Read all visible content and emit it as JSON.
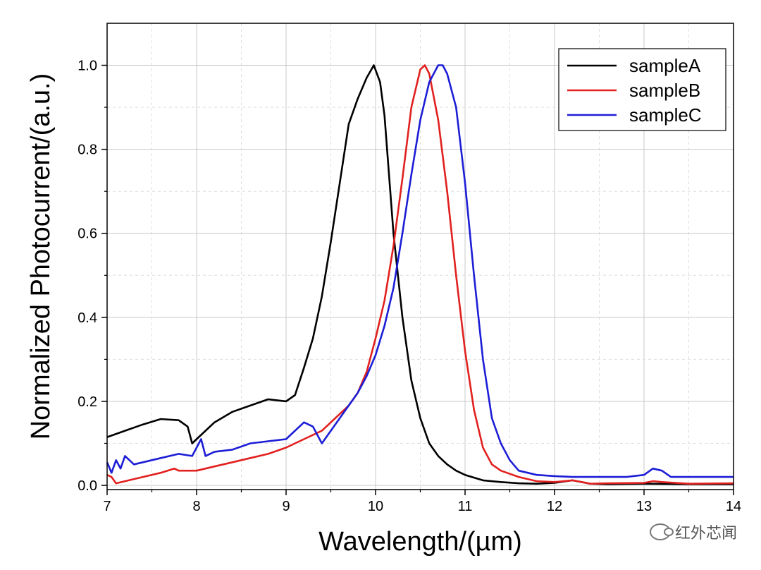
{
  "chart_data": {
    "type": "line",
    "title": "",
    "xlabel": "Wavelength/(µm)",
    "ylabel": "Normalized Photocurrent/(a.u.)",
    "xlim": [
      7,
      14
    ],
    "ylim": [
      -0.01,
      1.1
    ],
    "xticks": [
      7,
      8,
      9,
      10,
      11,
      12,
      13,
      14
    ],
    "xtick_labels": [
      "7",
      "8",
      "9",
      "10",
      "11",
      "12",
      "13",
      "14"
    ],
    "yticks": [
      0.0,
      0.2,
      0.4,
      0.6,
      0.8,
      1.0
    ],
    "ytick_labels": [
      "0.0",
      "0.2",
      "0.4",
      "0.6",
      "0.8",
      "1.0"
    ],
    "grid": true,
    "legend_position": "top-right",
    "series": [
      {
        "name": "sampleA",
        "color": "#000000",
        "x": [
          7.0,
          7.2,
          7.4,
          7.6,
          7.8,
          7.9,
          7.95,
          8.0,
          8.2,
          8.4,
          8.6,
          8.8,
          9.0,
          9.1,
          9.2,
          9.3,
          9.4,
          9.5,
          9.6,
          9.7,
          9.8,
          9.9,
          9.98,
          10.05,
          10.1,
          10.2,
          10.3,
          10.4,
          10.5,
          10.6,
          10.7,
          10.8,
          10.9,
          11.0,
          11.2,
          11.4,
          11.6,
          11.8,
          12.0,
          12.2,
          12.4,
          12.6,
          13.0,
          13.5,
          14.0
        ],
        "y": [
          0.115,
          0.13,
          0.145,
          0.158,
          0.155,
          0.14,
          0.1,
          0.11,
          0.15,
          0.175,
          0.19,
          0.205,
          0.2,
          0.215,
          0.28,
          0.35,
          0.45,
          0.58,
          0.72,
          0.86,
          0.92,
          0.97,
          1.0,
          0.96,
          0.88,
          0.6,
          0.4,
          0.25,
          0.16,
          0.1,
          0.07,
          0.05,
          0.035,
          0.025,
          0.012,
          0.008,
          0.005,
          0.004,
          0.006,
          0.012,
          0.004,
          0.003,
          0.004,
          0.003,
          0.003
        ]
      },
      {
        "name": "sampleB",
        "color": "#e1211f",
        "x": [
          7.0,
          7.05,
          7.1,
          7.2,
          7.4,
          7.6,
          7.75,
          7.8,
          8.0,
          8.2,
          8.4,
          8.6,
          8.8,
          9.0,
          9.2,
          9.4,
          9.5,
          9.6,
          9.7,
          9.8,
          9.9,
          10.0,
          10.1,
          10.2,
          10.3,
          10.4,
          10.5,
          10.55,
          10.6,
          10.7,
          10.8,
          10.9,
          11.0,
          11.1,
          11.2,
          11.3,
          11.4,
          11.6,
          11.8,
          12.0,
          12.2,
          12.4,
          12.6,
          13.0,
          13.1,
          13.2,
          13.5,
          14.0
        ],
        "y": [
          0.025,
          0.02,
          0.005,
          0.01,
          0.02,
          0.03,
          0.04,
          0.035,
          0.035,
          0.045,
          0.055,
          0.065,
          0.075,
          0.09,
          0.11,
          0.13,
          0.15,
          0.17,
          0.19,
          0.22,
          0.27,
          0.35,
          0.44,
          0.57,
          0.73,
          0.9,
          0.99,
          1.0,
          0.98,
          0.87,
          0.7,
          0.5,
          0.32,
          0.18,
          0.09,
          0.05,
          0.035,
          0.02,
          0.01,
          0.008,
          0.012,
          0.004,
          0.005,
          0.006,
          0.01,
          0.008,
          0.004,
          0.005
        ]
      },
      {
        "name": "sampleC",
        "color": "#1c1ed6",
        "x": [
          7.0,
          7.05,
          7.1,
          7.15,
          7.2,
          7.3,
          7.4,
          7.6,
          7.8,
          7.95,
          8.05,
          8.1,
          8.2,
          8.4,
          8.6,
          8.8,
          9.0,
          9.1,
          9.2,
          9.3,
          9.4,
          9.5,
          9.6,
          9.7,
          9.8,
          9.9,
          10.0,
          10.1,
          10.2,
          10.3,
          10.4,
          10.5,
          10.6,
          10.7,
          10.75,
          10.8,
          10.9,
          11.0,
          11.1,
          11.2,
          11.3,
          11.4,
          11.5,
          11.6,
          11.8,
          12.0,
          12.2,
          12.4,
          12.8,
          13.0,
          13.1,
          13.2,
          13.3,
          13.5,
          14.0
        ],
        "y": [
          0.055,
          0.03,
          0.06,
          0.04,
          0.07,
          0.05,
          0.055,
          0.065,
          0.075,
          0.07,
          0.11,
          0.07,
          0.08,
          0.085,
          0.1,
          0.105,
          0.11,
          0.13,
          0.15,
          0.14,
          0.1,
          0.13,
          0.16,
          0.19,
          0.22,
          0.26,
          0.31,
          0.38,
          0.47,
          0.6,
          0.74,
          0.87,
          0.96,
          1.0,
          1.0,
          0.98,
          0.9,
          0.72,
          0.5,
          0.3,
          0.16,
          0.1,
          0.06,
          0.035,
          0.025,
          0.022,
          0.02,
          0.02,
          0.02,
          0.025,
          0.04,
          0.035,
          0.02,
          0.02,
          0.02
        ]
      }
    ]
  },
  "watermark": {
    "text": "红外芯闻",
    "icon": "wechat-icon"
  }
}
